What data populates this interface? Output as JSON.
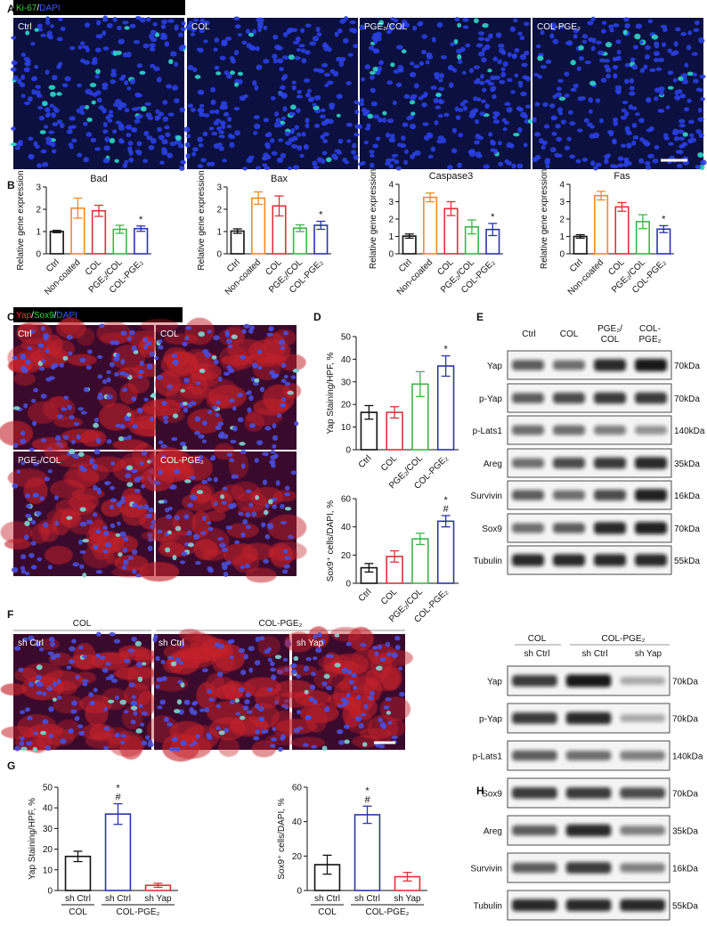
{
  "panel_labels": [
    "A",
    "B",
    "C",
    "D",
    "E",
    "F",
    "G",
    "H"
  ],
  "panel_a": {
    "stain": [
      "Ki-67",
      "/",
      "DAPI"
    ],
    "images": [
      "Ctrl",
      "COL",
      "PGE₂/COL",
      "COL-PGE₂"
    ]
  },
  "panel_c": {
    "stain": [
      "Yap",
      "/",
      "Sox9",
      "/",
      "DAPI"
    ],
    "images": [
      "Ctrl",
      "COL",
      "PGE₂/COL",
      "COL-PGE₂"
    ]
  },
  "panel_e": {
    "columns": [
      [
        "Ctrl"
      ],
      [
        "COL"
      ],
      [
        "PGE₂/",
        "COL"
      ],
      [
        "COL-",
        "PGE₂"
      ]
    ],
    "rows": [
      {
        "label": "Yap",
        "size": "70kDa"
      },
      {
        "label": "p-Yap",
        "size": "70kDa"
      },
      {
        "label": "p-Lats1",
        "size": "140kDa"
      },
      {
        "label": "Areg",
        "size": "35kDa"
      },
      {
        "label": "Survivin",
        "size": "16kDa"
      },
      {
        "label": "Sox9",
        "size": "70kDa"
      },
      {
        "label": "Tubulin",
        "size": "55kDa"
      }
    ]
  },
  "panel_f": {
    "groups": [
      "COL",
      "COL-PGE₂"
    ],
    "images": [
      "sh Ctrl",
      "sh Ctrl",
      "sh Yap"
    ]
  },
  "panel_h": {
    "groups": [
      "COL",
      "COL-PGE₂"
    ],
    "lanes": [
      "sh Ctrl",
      "sh Ctrl",
      "sh Yap"
    ],
    "rows": [
      {
        "label": "Yap",
        "size": "70kDa"
      },
      {
        "label": "p-Yap",
        "size": "70kDa"
      },
      {
        "label": "p-Lats1",
        "size": "140kDa"
      },
      {
        "label": "Sox9",
        "size": "70kDa"
      },
      {
        "label": "Areg",
        "size": "35kDa"
      },
      {
        "label": "Survivin",
        "size": "16kDa"
      },
      {
        "label": "Tubulin",
        "size": "55kDa"
      }
    ]
  },
  "chart_data": [
    {
      "type": "bar",
      "title": "Bad",
      "y_label": "Relative gene expression",
      "categories": [
        "Ctrl",
        "Non-coated",
        "COL",
        "PGE₂/COL",
        "COL-PGE₂"
      ],
      "values": [
        1.0,
        2.05,
        1.93,
        1.1,
        1.13
      ],
      "errors": [
        0.05,
        0.45,
        0.25,
        0.18,
        0.12
      ],
      "colors": [
        "#111111",
        "#f28a24",
        "#e0313a",
        "#3db54a",
        "#2b35a8"
      ],
      "significance": [
        null,
        null,
        null,
        null,
        [
          "*"
        ]
      ],
      "ylim": [
        0,
        3
      ],
      "yticks": [
        0,
        1,
        2,
        3
      ]
    },
    {
      "type": "bar",
      "title": "Bax",
      "y_label": "Relative gene expression",
      "categories": [
        "Ctrl",
        "Non-coated",
        "COL",
        "PGE₂/COL",
        "COL-PGE₂"
      ],
      "values": [
        1.02,
        2.5,
        2.15,
        1.15,
        1.28
      ],
      "errors": [
        0.1,
        0.28,
        0.45,
        0.15,
        0.18
      ],
      "colors": [
        "#111111",
        "#f28a24",
        "#e0313a",
        "#3db54a",
        "#2b35a8"
      ],
      "significance": [
        null,
        null,
        null,
        null,
        [
          "*"
        ]
      ],
      "ylim": [
        0,
        3
      ],
      "yticks": [
        0,
        1,
        2,
        3
      ]
    },
    {
      "type": "bar",
      "title": "Caspase3",
      "y_label": "Relative gene expression",
      "categories": [
        "Ctrl",
        "Non-coated",
        "COL",
        "PGE₂/COL",
        "COL-PGE₂"
      ],
      "values": [
        1.02,
        3.25,
        2.6,
        1.55,
        1.4
      ],
      "errors": [
        0.12,
        0.25,
        0.4,
        0.4,
        0.35
      ],
      "colors": [
        "#111111",
        "#f28a24",
        "#e0313a",
        "#3db54a",
        "#2b35a8"
      ],
      "significance": [
        null,
        null,
        null,
        null,
        [
          "*"
        ]
      ],
      "ylim": [
        0,
        4
      ],
      "yticks": [
        0,
        1,
        2,
        3,
        4
      ]
    },
    {
      "type": "bar",
      "title": "Fas",
      "y_label": "Relative gene expression",
      "categories": [
        "Ctrl",
        "Non-coated",
        "COL",
        "PGE₂/COL",
        "COL-PGE₂"
      ],
      "values": [
        1.0,
        3.35,
        2.7,
        1.85,
        1.42
      ],
      "errors": [
        0.1,
        0.25,
        0.25,
        0.4,
        0.2
      ],
      "colors": [
        "#111111",
        "#f28a24",
        "#e0313a",
        "#3db54a",
        "#2b35a8"
      ],
      "significance": [
        null,
        null,
        null,
        null,
        [
          "*"
        ]
      ],
      "ylim": [
        0,
        4
      ],
      "yticks": [
        0,
        1,
        2,
        3,
        4
      ]
    },
    {
      "type": "bar",
      "y_label": "Yap Staining/HPF, %",
      "categories": [
        "Ctrl",
        "COL",
        "PGE₂/COL",
        "COL-PGE₂"
      ],
      "values": [
        16.5,
        16.5,
        29,
        37
      ],
      "errors": [
        3,
        2.5,
        5.5,
        4.5
      ],
      "colors": [
        "#111111",
        "#e0313a",
        "#3db54a",
        "#2b35a8"
      ],
      "significance": [
        null,
        null,
        null,
        [
          "*"
        ]
      ],
      "ylim": [
        0,
        50
      ],
      "yticks": [
        0,
        10,
        20,
        30,
        40,
        50
      ]
    },
    {
      "type": "bar",
      "y_label": "Sox9⁺ cells/DAPI, %",
      "categories": [
        "Ctrl",
        "COL",
        "PGE₂/COL",
        "COL-PGE₂"
      ],
      "values": [
        11,
        19,
        31.5,
        44
      ],
      "errors": [
        3,
        4,
        4,
        4
      ],
      "colors": [
        "#111111",
        "#e0313a",
        "#3db54a",
        "#2b35a8"
      ],
      "significance": [
        null,
        null,
        null,
        [
          "*",
          "#"
        ]
      ],
      "ylim": [
        0,
        60
      ],
      "yticks": [
        0,
        20,
        40,
        60
      ]
    },
    {
      "type": "bar",
      "y_label": "Yap Staining/HPF, %",
      "categories": [
        "sh Ctrl",
        "sh Ctrl",
        "sh Yap"
      ],
      "groups": [
        "COL",
        "COL-PGE₂"
      ],
      "values": [
        16.5,
        37,
        2.5
      ],
      "errors": [
        2.5,
        5,
        1
      ],
      "colors": [
        "#111111",
        "#2b35a8",
        "#e0313a"
      ],
      "significance": [
        null,
        [
          "*",
          "#"
        ],
        null
      ],
      "ylim": [
        0,
        50
      ],
      "yticks": [
        0,
        10,
        20,
        30,
        40,
        50
      ]
    },
    {
      "type": "bar",
      "y_label": "Sox9⁺ cells/DAPI, %",
      "categories": [
        "sh Ctrl",
        "sh Ctrl",
        "sh Yap"
      ],
      "groups": [
        "COL",
        "COL-PGE₂"
      ],
      "values": [
        15,
        44,
        8
      ],
      "errors": [
        5.5,
        5,
        2.5
      ],
      "colors": [
        "#111111",
        "#2b35a8",
        "#e0313a"
      ],
      "significance": [
        null,
        [
          "*",
          "#"
        ],
        null
      ],
      "ylim": [
        0,
        60
      ],
      "yticks": [
        0,
        20,
        40,
        60
      ]
    }
  ]
}
